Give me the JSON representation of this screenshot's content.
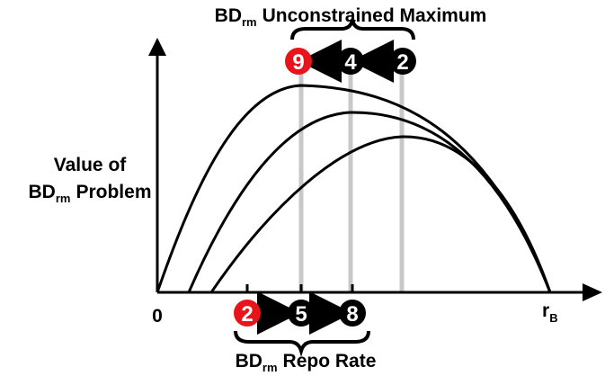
{
  "top_label": {
    "main": "BD",
    "sub": "rm",
    "rest": "Unconstrained Maximum"
  },
  "y_label": {
    "line1": "Value of",
    "main": "BD",
    "sub": "rm",
    "rest": "Problem"
  },
  "origin_label": "0",
  "x_end_label": {
    "main": "r",
    "sub": "B"
  },
  "top_steps": [
    "9",
    "4",
    "2"
  ],
  "bottom_steps": [
    "2",
    "5",
    "8"
  ],
  "bottom_label": {
    "main": "BD",
    "sub": "rm",
    "rest": "Repo Rate"
  }
}
